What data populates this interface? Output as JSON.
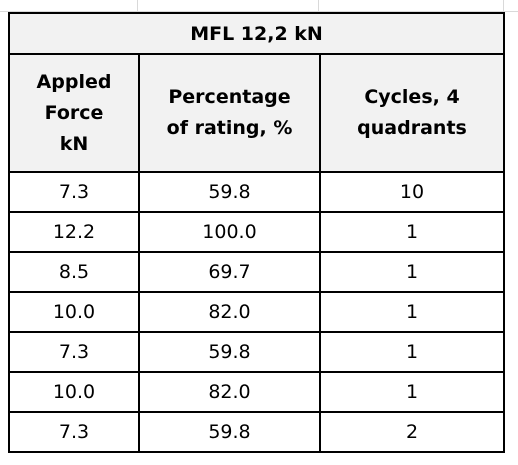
{
  "table": {
    "title": "MFL 12,2 kN",
    "headers": [
      [
        "Appled",
        "Force",
        "kN"
      ],
      [
        "Percentage",
        "of rating, %"
      ],
      [
        "Cycles, 4",
        "quadrants"
      ]
    ],
    "rows": [
      [
        "7.3",
        "59.8",
        "10"
      ],
      [
        "12.2",
        "100.0",
        "1"
      ],
      [
        "8.5",
        "69.7",
        "1"
      ],
      [
        "10.0",
        "82.0",
        "1"
      ],
      [
        "7.3",
        "59.8",
        "1"
      ],
      [
        "10.0",
        "82.0",
        "1"
      ],
      [
        "7.3",
        "59.8",
        "2"
      ]
    ]
  }
}
